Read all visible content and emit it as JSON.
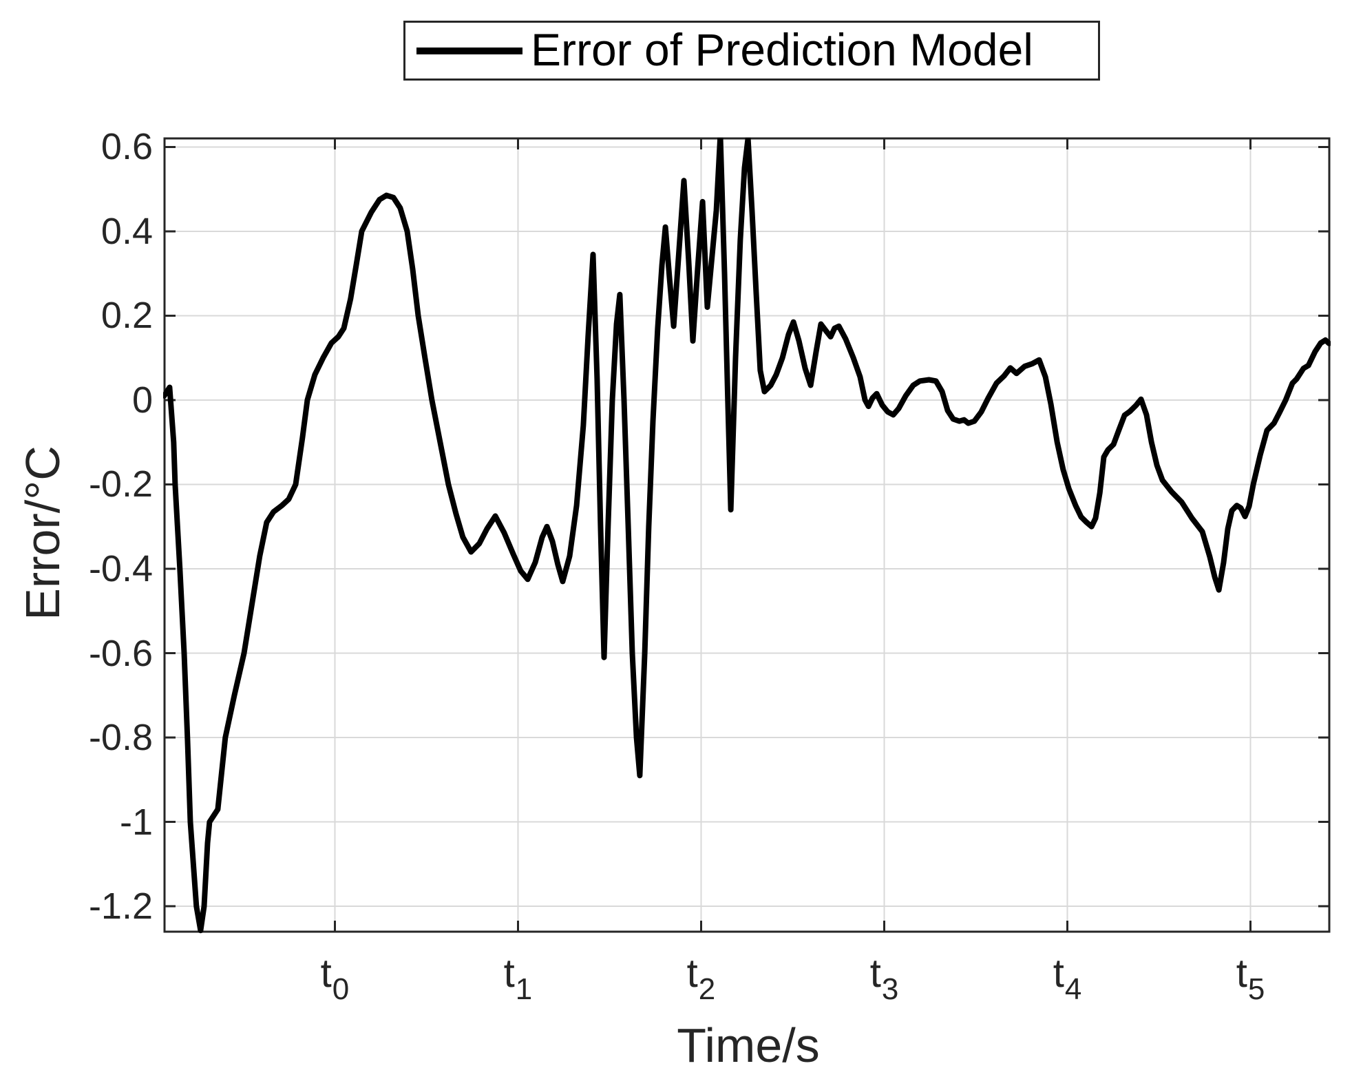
{
  "legend": {
    "label": "Error of Prediction Model"
  },
  "chart_data": {
    "type": "line",
    "title": "",
    "xlabel": "Time/s",
    "ylabel": "Error/°C",
    "grid": true,
    "legend_position": "top-center-outside",
    "xlim": [
      -0.93,
      5.43
    ],
    "ylim": [
      -1.26,
      0.62
    ],
    "line_color": "#000000",
    "grid_color": "#d9d9d9",
    "axis_color": "#262626",
    "xticks": [
      {
        "value": 0,
        "base": "t",
        "sub": "0"
      },
      {
        "value": 1,
        "base": "t",
        "sub": "1"
      },
      {
        "value": 2,
        "base": "t",
        "sub": "2"
      },
      {
        "value": 3,
        "base": "t",
        "sub": "3"
      },
      {
        "value": 4,
        "base": "t",
        "sub": "4"
      },
      {
        "value": 5,
        "base": "t",
        "sub": "5"
      }
    ],
    "yticks": [
      {
        "value": 0.6,
        "label": "0.6"
      },
      {
        "value": 0.4,
        "label": "0.4"
      },
      {
        "value": 0.2,
        "label": "0.2"
      },
      {
        "value": 0,
        "label": "0"
      },
      {
        "value": -0.2,
        "label": "-0.2"
      },
      {
        "value": -0.4,
        "label": "-0.4"
      },
      {
        "value": -0.6,
        "label": "-0.6"
      },
      {
        "value": -0.8,
        "label": "-0.8"
      },
      {
        "value": -1,
        "label": "-1"
      },
      {
        "value": -1.2,
        "label": "-1.2"
      }
    ],
    "series": [
      {
        "name": "Error of Prediction Model",
        "points": [
          [
            -0.932,
            0.01
          ],
          [
            -0.902,
            0.03
          ],
          [
            -0.88,
            -0.1
          ],
          [
            -0.872,
            -0.2
          ],
          [
            -0.846,
            -0.4
          ],
          [
            -0.823,
            -0.6
          ],
          [
            -0.805,
            -0.8
          ],
          [
            -0.789,
            -1.0
          ],
          [
            -0.756,
            -1.2
          ],
          [
            -0.733,
            -1.257
          ],
          [
            -0.714,
            -1.2
          ],
          [
            -0.695,
            -1.05
          ],
          [
            -0.684,
            -1.0
          ],
          [
            -0.639,
            -0.97
          ],
          [
            -0.598,
            -0.8
          ],
          [
            -0.549,
            -0.7
          ],
          [
            -0.496,
            -0.6
          ],
          [
            -0.451,
            -0.48
          ],
          [
            -0.41,
            -0.37
          ],
          [
            -0.372,
            -0.29
          ],
          [
            -0.335,
            -0.265
          ],
          [
            -0.289,
            -0.25
          ],
          [
            -0.252,
            -0.235
          ],
          [
            -0.214,
            -0.2
          ],
          [
            -0.177,
            -0.09
          ],
          [
            -0.15,
            0.0
          ],
          [
            -0.109,
            0.06
          ],
          [
            -0.064,
            0.1
          ],
          [
            -0.019,
            0.135
          ],
          [
            0.019,
            0.15
          ],
          [
            0.049,
            0.17
          ],
          [
            0.086,
            0.24
          ],
          [
            0.117,
            0.32
          ],
          [
            0.147,
            0.4
          ],
          [
            0.199,
            0.445
          ],
          [
            0.244,
            0.475
          ],
          [
            0.282,
            0.485
          ],
          [
            0.32,
            0.48
          ],
          [
            0.357,
            0.455
          ],
          [
            0.395,
            0.4
          ],
          [
            0.425,
            0.31
          ],
          [
            0.455,
            0.2
          ],
          [
            0.492,
            0.1
          ],
          [
            0.53,
            0.0
          ],
          [
            0.575,
            -0.1
          ],
          [
            0.62,
            -0.2
          ],
          [
            0.662,
            -0.27
          ],
          [
            0.699,
            -0.325
          ],
          [
            0.744,
            -0.36
          ],
          [
            0.789,
            -0.34
          ],
          [
            0.831,
            -0.305
          ],
          [
            0.876,
            -0.275
          ],
          [
            0.925,
            -0.315
          ],
          [
            0.974,
            -0.365
          ],
          [
            1.015,
            -0.405
          ],
          [
            1.053,
            -0.425
          ],
          [
            1.094,
            -0.385
          ],
          [
            1.132,
            -0.325
          ],
          [
            1.158,
            -0.3
          ],
          [
            1.188,
            -0.335
          ],
          [
            1.218,
            -0.39
          ],
          [
            1.244,
            -0.43
          ],
          [
            1.282,
            -0.37
          ],
          [
            1.32,
            -0.25
          ],
          [
            1.357,
            -0.06
          ],
          [
            1.383,
            0.15
          ],
          [
            1.41,
            0.345
          ],
          [
            1.432,
            0.05
          ],
          [
            1.451,
            -0.3
          ],
          [
            1.47,
            -0.61
          ],
          [
            1.492,
            -0.3
          ],
          [
            1.515,
            0.0
          ],
          [
            1.538,
            0.18
          ],
          [
            1.556,
            0.25
          ],
          [
            1.579,
            0.0
          ],
          [
            1.602,
            -0.3
          ],
          [
            1.624,
            -0.6
          ],
          [
            1.647,
            -0.8
          ],
          [
            1.665,
            -0.89
          ],
          [
            1.692,
            -0.6
          ],
          [
            1.714,
            -0.3
          ],
          [
            1.737,
            -0.05
          ],
          [
            1.763,
            0.17
          ],
          [
            1.786,
            0.32
          ],
          [
            1.805,
            0.41
          ],
          [
            1.827,
            0.29
          ],
          [
            1.85,
            0.175
          ],
          [
            1.88,
            0.36
          ],
          [
            1.906,
            0.52
          ],
          [
            1.932,
            0.33
          ],
          [
            1.955,
            0.14
          ],
          [
            1.981,
            0.31
          ],
          [
            2.008,
            0.47
          ],
          [
            2.034,
            0.22
          ],
          [
            2.083,
            0.45
          ],
          [
            2.105,
            0.628
          ],
          [
            2.128,
            0.3
          ],
          [
            2.147,
            -0.02
          ],
          [
            2.162,
            -0.26
          ],
          [
            2.188,
            0.1
          ],
          [
            2.214,
            0.38
          ],
          [
            2.237,
            0.55
          ],
          [
            2.256,
            0.62
          ],
          [
            2.278,
            0.45
          ],
          [
            2.301,
            0.25
          ],
          [
            2.323,
            0.07
          ],
          [
            2.346,
            0.02
          ],
          [
            2.38,
            0.035
          ],
          [
            2.41,
            0.06
          ],
          [
            2.444,
            0.1
          ],
          [
            2.477,
            0.155
          ],
          [
            2.504,
            0.185
          ],
          [
            2.534,
            0.14
          ],
          [
            2.568,
            0.075
          ],
          [
            2.598,
            0.035
          ],
          [
            2.628,
            0.115
          ],
          [
            2.654,
            0.18
          ],
          [
            2.68,
            0.165
          ],
          [
            2.707,
            0.15
          ],
          [
            2.729,
            0.17
          ],
          [
            2.752,
            0.175
          ],
          [
            2.789,
            0.145
          ],
          [
            2.831,
            0.1
          ],
          [
            2.868,
            0.055
          ],
          [
            2.895,
            0.0
          ],
          [
            2.914,
            -0.015
          ],
          [
            2.936,
            0.005
          ],
          [
            2.959,
            0.015
          ],
          [
            2.989,
            -0.012
          ],
          [
            3.019,
            -0.028
          ],
          [
            3.049,
            -0.035
          ],
          [
            3.079,
            -0.02
          ],
          [
            3.117,
            0.01
          ],
          [
            3.158,
            0.035
          ],
          [
            3.195,
            0.045
          ],
          [
            3.244,
            0.048
          ],
          [
            3.282,
            0.045
          ],
          [
            3.316,
            0.02
          ],
          [
            3.346,
            -0.025
          ],
          [
            3.376,
            -0.045
          ],
          [
            3.41,
            -0.05
          ],
          [
            3.436,
            -0.047
          ],
          [
            3.459,
            -0.055
          ],
          [
            3.492,
            -0.05
          ],
          [
            3.53,
            -0.028
          ],
          [
            3.568,
            0.005
          ],
          [
            3.613,
            0.04
          ],
          [
            3.654,
            0.057
          ],
          [
            3.688,
            0.076
          ],
          [
            3.722,
            0.063
          ],
          [
            3.767,
            0.08
          ],
          [
            3.808,
            0.086
          ],
          [
            3.846,
            0.095
          ],
          [
            3.88,
            0.055
          ],
          [
            3.91,
            -0.01
          ],
          [
            3.944,
            -0.1
          ],
          [
            3.977,
            -0.165
          ],
          [
            4.008,
            -0.21
          ],
          [
            4.045,
            -0.25
          ],
          [
            4.075,
            -0.277
          ],
          [
            4.105,
            -0.29
          ],
          [
            4.132,
            -0.3
          ],
          [
            4.154,
            -0.28
          ],
          [
            4.177,
            -0.22
          ],
          [
            4.199,
            -0.135
          ],
          [
            4.222,
            -0.118
          ],
          [
            4.252,
            -0.105
          ],
          [
            4.282,
            -0.07
          ],
          [
            4.312,
            -0.036
          ],
          [
            4.341,
            -0.027
          ],
          [
            4.376,
            -0.012
          ],
          [
            4.402,
            0.002
          ],
          [
            4.432,
            -0.035
          ],
          [
            4.459,
            -0.1
          ],
          [
            4.489,
            -0.155
          ],
          [
            4.519,
            -0.19
          ],
          [
            4.568,
            -0.217
          ],
          [
            4.624,
            -0.242
          ],
          [
            4.68,
            -0.28
          ],
          [
            4.737,
            -0.312
          ],
          [
            4.778,
            -0.372
          ],
          [
            4.805,
            -0.42
          ],
          [
            4.827,
            -0.45
          ],
          [
            4.853,
            -0.385
          ],
          [
            4.876,
            -0.305
          ],
          [
            4.898,
            -0.262
          ],
          [
            4.925,
            -0.25
          ],
          [
            4.947,
            -0.256
          ],
          [
            4.97,
            -0.276
          ],
          [
            4.992,
            -0.252
          ],
          [
            5.015,
            -0.2
          ],
          [
            5.053,
            -0.13
          ],
          [
            5.09,
            -0.072
          ],
          [
            5.128,
            -0.055
          ],
          [
            5.158,
            -0.03
          ],
          [
            5.192,
            0.0
          ],
          [
            5.229,
            0.04
          ],
          [
            5.252,
            0.05
          ],
          [
            5.289,
            0.075
          ],
          [
            5.316,
            0.082
          ],
          [
            5.353,
            0.115
          ],
          [
            5.383,
            0.135
          ],
          [
            5.409,
            0.142
          ],
          [
            5.429,
            0.134
          ]
        ]
      }
    ]
  }
}
